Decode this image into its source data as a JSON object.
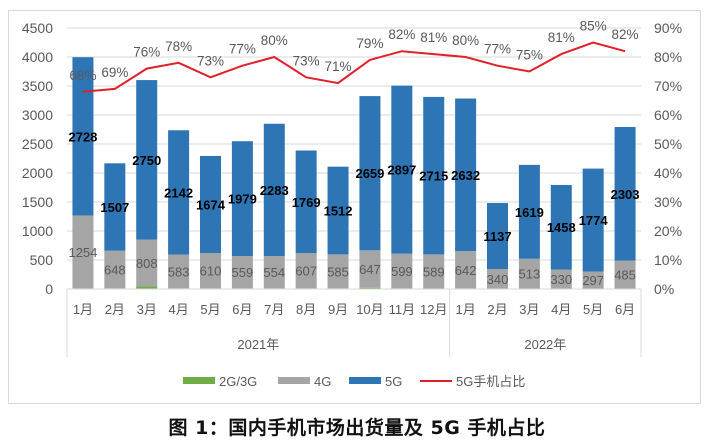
{
  "chart_data": {
    "type": "bar",
    "subtype": "stacked bar with line on secondary axis",
    "caption": "图 1：国内手机市场出货量及 5G 手机占比",
    "x_groups": [
      {
        "label": "2021年",
        "months": [
          "1月",
          "2月",
          "3月",
          "4月",
          "5月",
          "6月",
          "7月",
          "8月",
          "9月",
          "10月",
          "11月",
          "12月"
        ]
      },
      {
        "label": "2022年",
        "months": [
          "1月",
          "2月",
          "3月",
          "4月",
          "5月",
          "6月"
        ]
      }
    ],
    "categories": [
      "2021-1月",
      "2021-2月",
      "2021-3月",
      "2021-4月",
      "2021-5月",
      "2021-6月",
      "2021-7月",
      "2021-8月",
      "2021-9月",
      "2021-10月",
      "2021-11月",
      "2021-12月",
      "2022-1月",
      "2022-2月",
      "2022-3月",
      "2022-4月",
      "2022-5月",
      "2022-6月"
    ],
    "series": [
      {
        "name": "2G/3G",
        "type": "bar",
        "color": "#70ad47",
        "values": [
          14,
          12,
          44,
          12,
          10,
          10,
          12,
          12,
          12,
          20,
          10,
          8,
          10,
          5,
          8,
          6,
          5,
          5
        ]
      },
      {
        "name": "4G",
        "type": "bar",
        "color": "#a5a5a5",
        "values": [
          1254,
          648,
          808,
          583,
          610,
          559,
          554,
          607,
          585,
          647,
          599,
          589,
          642,
          340,
          513,
          330,
          297,
          485
        ]
      },
      {
        "name": "5G",
        "type": "bar",
        "color": "#2e75b6",
        "values": [
          2728,
          1507,
          2750,
          2142,
          1674,
          1979,
          2283,
          1769,
          1512,
          2659,
          2897,
          2715,
          2632,
          1137,
          1619,
          1458,
          1774,
          2303
        ]
      },
      {
        "name": "5G手机占比",
        "type": "line",
        "axis": "secondary",
        "color": "#e0202a",
        "values": [
          68,
          69,
          76,
          78,
          73,
          77,
          80,
          73,
          71,
          79,
          82,
          81,
          80,
          77,
          75,
          81,
          85,
          82
        ],
        "labels": [
          "68%",
          "69%",
          "76%",
          "78%",
          "73%",
          "77%",
          "80%",
          "73%",
          "71%",
          "79%",
          "82%",
          "81%",
          "80%",
          "77%",
          "75%",
          "81%",
          "85%",
          "82%"
        ]
      }
    ],
    "y_left": {
      "ticks": [
        "0",
        "500",
        "1000",
        "1500",
        "2000",
        "2500",
        "3000",
        "3500",
        "4000",
        "4500"
      ],
      "range": [
        0,
        4500
      ]
    },
    "y_right": {
      "ticks": [
        "0%",
        "10%",
        "20%",
        "30%",
        "40%",
        "50%",
        "60%",
        "70%",
        "80%",
        "90%"
      ],
      "range": [
        0,
        90
      ]
    },
    "legend": [
      "2G/3G",
      "4G",
      "5G",
      "5G手机占比"
    ],
    "legend_position": "bottom",
    "grid": true
  }
}
